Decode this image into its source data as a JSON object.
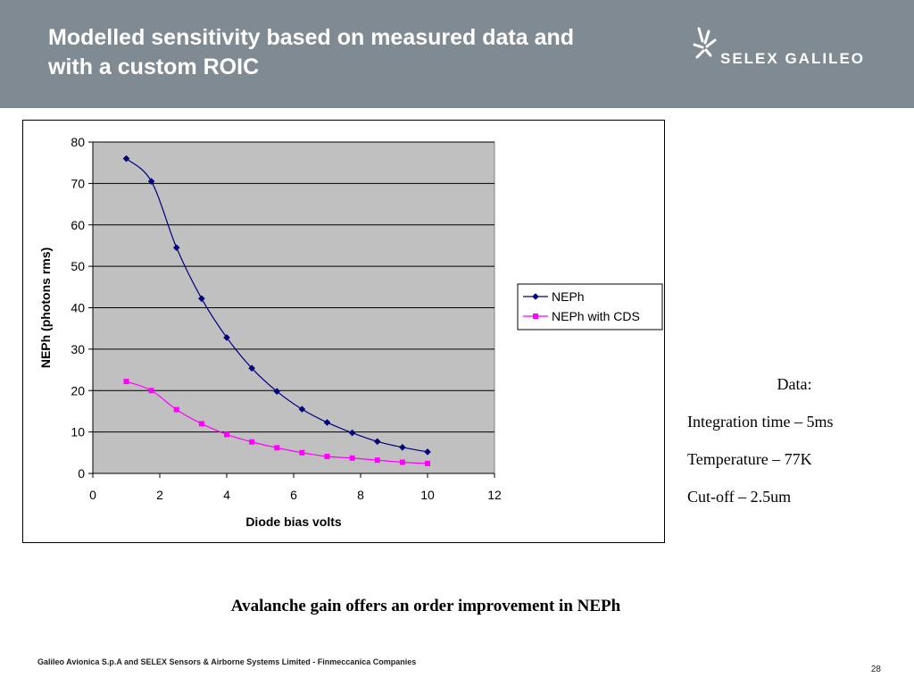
{
  "slide": {
    "title_line1": "Modelled sensitivity based on measured data and",
    "title_line2": "with a custom ROIC",
    "logo_text": "SELEX GALILEO",
    "caption": "Avalanche gain offers an order improvement in NEPh",
    "footer": "Galileo Avionica S.p.A and SELEX Sensors & Airborne Systems Limited - Finmeccanica Companies",
    "page_number": "28",
    "header_color": "#7f8a92"
  },
  "info": {
    "heading": "Data:",
    "integration": "Integration time – 5ms",
    "temperature": "Temperature – 77K",
    "cutoff": "Cut-off – 2.5um"
  },
  "chart_data": {
    "type": "line",
    "title": "",
    "xlabel": "Diode bias volts",
    "ylabel": "NEPh (photons rms)",
    "xlim": [
      0,
      12
    ],
    "ylim": [
      0,
      80
    ],
    "xticks": [
      0,
      2,
      4,
      6,
      8,
      10,
      12
    ],
    "yticks": [
      0,
      10,
      20,
      30,
      40,
      50,
      60,
      70,
      80
    ],
    "grid": "horizontal",
    "plot_background": "#c0c0c0",
    "legend_position": "right",
    "series": [
      {
        "name": "NEPh",
        "color": "#000080",
        "marker": "diamond",
        "x": [
          1,
          1.75,
          2.5,
          3.25,
          4,
          4.75,
          5.5,
          6.25,
          7,
          7.75,
          8.5,
          9.25,
          10
        ],
        "y": [
          76,
          70.5,
          54.5,
          42.2,
          32.8,
          25.4,
          19.8,
          15.5,
          12.3,
          9.8,
          7.7,
          6.3,
          5.2
        ]
      },
      {
        "name": "NEPh with CDS",
        "color": "#ff00ff",
        "marker": "square",
        "x": [
          1,
          1.75,
          2.5,
          3.25,
          4,
          4.75,
          5.5,
          6.25,
          7,
          7.75,
          8.5,
          9.25,
          10
        ],
        "y": [
          22.2,
          20,
          15.4,
          12,
          9.4,
          7.6,
          6.2,
          5,
          4.1,
          3.7,
          3.2,
          2.7,
          2.4
        ]
      }
    ]
  }
}
